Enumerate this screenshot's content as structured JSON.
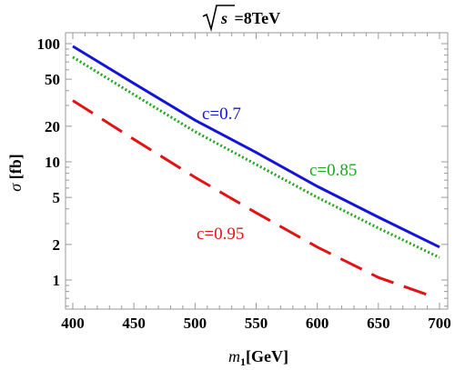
{
  "chart_data": {
    "type": "line",
    "title": {
      "root_symbol": "s",
      "rest": " =8TeV"
    },
    "xlabel": {
      "var": "m",
      "sub": "1",
      "unit": "[GeV]"
    },
    "ylabel": {
      "sym": "σ",
      "unit": " [fb]"
    },
    "xlim": [
      400,
      700
    ],
    "ylim": [
      0.6,
      100
    ],
    "y_scale": "log",
    "x_ticks": [
      "400",
      "450",
      "500",
      "550",
      "600",
      "650",
      "700"
    ],
    "y_ticks": [
      "1",
      "2",
      "5",
      "10",
      "20",
      "50",
      "100"
    ],
    "grid": false,
    "series": [
      {
        "name": "c=0.7",
        "color": "#1414d6",
        "style": "solid",
        "x": [
          400,
          450,
          500,
          550,
          600,
          650,
          700
        ],
        "y": [
          95,
          46,
          22.5,
          12.0,
          6.2,
          3.4,
          1.9
        ]
      },
      {
        "name": "c=0.85",
        "color": "#1fa81f",
        "style": "dotted",
        "x": [
          400,
          450,
          500,
          550,
          600,
          650,
          700
        ],
        "y": [
          77,
          37,
          18.0,
          9.5,
          5.0,
          2.75,
          1.55
        ]
      },
      {
        "name": "c=0.95",
        "color": "#e01414",
        "style": "dashed",
        "x": [
          400,
          450,
          500,
          550,
          600,
          650,
          690
        ],
        "y": [
          33,
          15.5,
          7.4,
          3.7,
          1.9,
          1.05,
          0.75
        ]
      }
    ],
    "annotations": [
      {
        "text": "c=0.7",
        "color": "#1414d6"
      },
      {
        "text": "c=0.85",
        "color": "#1fa81f"
      },
      {
        "text": "c=0.95",
        "color": "#e01414"
      }
    ]
  }
}
